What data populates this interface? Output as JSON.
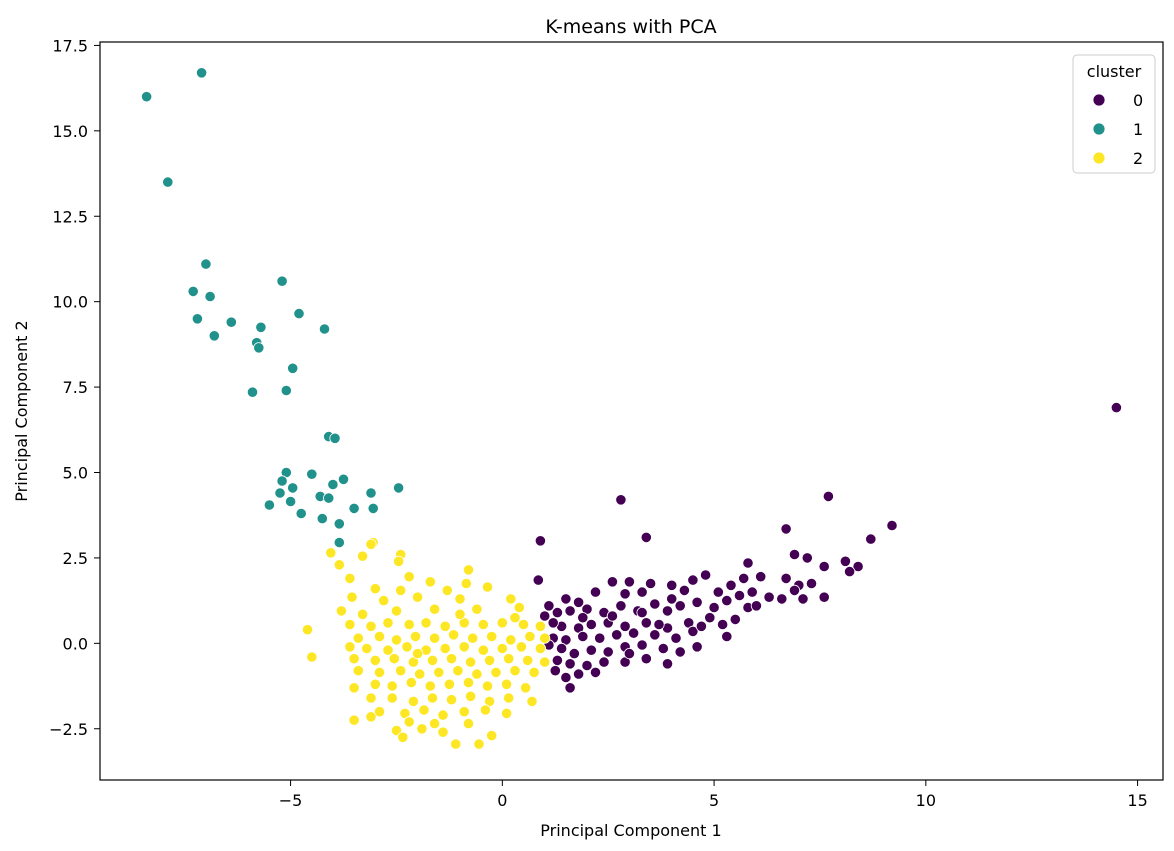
{
  "chart_data": {
    "type": "scatter",
    "title": "K-means with PCA",
    "xlabel": "Principal Component 1",
    "ylabel": "Principal Component 2",
    "xlim": [
      -9.5,
      15.6
    ],
    "ylim": [
      -4.0,
      17.6
    ],
    "xticks": [
      -5,
      0,
      5,
      10,
      15
    ],
    "xtick_labels": [
      "−5",
      "0",
      "5",
      "10",
      "15"
    ],
    "yticks": [
      -2.5,
      0.0,
      2.5,
      5.0,
      7.5,
      10.0,
      12.5,
      15.0,
      17.5
    ],
    "ytick_labels": [
      "−2.5",
      "0.0",
      "2.5",
      "5.0",
      "7.5",
      "10.0",
      "12.5",
      "15.0",
      "17.5"
    ],
    "grid": false,
    "legend": {
      "title": "cluster",
      "position": "top-right"
    },
    "series": [
      {
        "name": "0",
        "color": "#440154",
        "points": [
          [
            14.5,
            6.9
          ],
          [
            7.7,
            4.3
          ],
          [
            2.8,
            4.2
          ],
          [
            9.2,
            3.45
          ],
          [
            6.7,
            3.35
          ],
          [
            3.4,
            3.1
          ],
          [
            8.7,
            3.05
          ],
          [
            0.9,
            3.0
          ],
          [
            6.9,
            2.6
          ],
          [
            7.2,
            2.5
          ],
          [
            5.8,
            2.35
          ],
          [
            7.6,
            2.25
          ],
          [
            8.4,
            2.25
          ],
          [
            8.1,
            2.4
          ],
          [
            8.2,
            2.1
          ],
          [
            4.8,
            2.0
          ],
          [
            4.5,
            1.85
          ],
          [
            0.85,
            1.85
          ],
          [
            2.6,
            1.8
          ],
          [
            3.0,
            1.8
          ],
          [
            3.5,
            1.75
          ],
          [
            4.0,
            1.7
          ],
          [
            6.1,
            1.95
          ],
          [
            5.7,
            1.9
          ],
          [
            7.0,
            1.7
          ],
          [
            7.3,
            1.75
          ],
          [
            6.7,
            1.9
          ],
          [
            5.4,
            1.7
          ],
          [
            5.1,
            1.5
          ],
          [
            4.3,
            1.55
          ],
          [
            3.3,
            1.5
          ],
          [
            2.9,
            1.45
          ],
          [
            2.2,
            1.5
          ],
          [
            1.8,
            1.2
          ],
          [
            1.5,
            1.3
          ],
          [
            1.1,
            1.1
          ],
          [
            1.0,
            0.8
          ],
          [
            1.3,
            0.9
          ],
          [
            1.6,
            0.95
          ],
          [
            2.0,
            1.0
          ],
          [
            2.4,
            0.9
          ],
          [
            2.8,
            1.1
          ],
          [
            3.2,
            0.95
          ],
          [
            3.6,
            1.15
          ],
          [
            3.9,
            0.95
          ],
          [
            4.2,
            1.1
          ],
          [
            4.6,
            1.2
          ],
          [
            5.0,
            1.05
          ],
          [
            5.3,
            1.25
          ],
          [
            5.8,
            1.05
          ],
          [
            6.3,
            1.35
          ],
          [
            6.6,
            1.3
          ],
          [
            7.1,
            1.3
          ],
          [
            7.6,
            1.35
          ],
          [
            5.9,
            1.5
          ],
          [
            4.9,
            0.75
          ],
          [
            4.4,
            0.6
          ],
          [
            3.9,
            0.45
          ],
          [
            3.4,
            0.6
          ],
          [
            2.9,
            0.5
          ],
          [
            2.5,
            0.6
          ],
          [
            2.1,
            0.55
          ],
          [
            1.8,
            0.45
          ],
          [
            1.4,
            0.5
          ],
          [
            1.2,
            0.15
          ],
          [
            1.5,
            0.1
          ],
          [
            1.9,
            0.2
          ],
          [
            2.3,
            0.15
          ],
          [
            2.7,
            0.25
          ],
          [
            3.1,
            0.3
          ],
          [
            3.6,
            0.25
          ],
          [
            4.1,
            0.15
          ],
          [
            4.5,
            0.35
          ],
          [
            5.2,
            0.55
          ],
          [
            5.5,
            0.7
          ],
          [
            5.3,
            0.2
          ],
          [
            4.6,
            -0.1
          ],
          [
            4.2,
            -0.25
          ],
          [
            3.8,
            -0.15
          ],
          [
            3.3,
            -0.05
          ],
          [
            2.9,
            -0.1
          ],
          [
            2.5,
            -0.25
          ],
          [
            2.1,
            -0.2
          ],
          [
            1.7,
            -0.3
          ],
          [
            1.4,
            -0.15
          ],
          [
            1.1,
            -0.05
          ],
          [
            1.3,
            -0.5
          ],
          [
            1.6,
            -0.6
          ],
          [
            2.0,
            -0.65
          ],
          [
            2.4,
            -0.55
          ],
          [
            2.9,
            -0.55
          ],
          [
            3.4,
            -0.45
          ],
          [
            3.9,
            -0.6
          ],
          [
            1.5,
            -1.0
          ],
          [
            1.6,
            -1.3
          ],
          [
            1.25,
            -0.8
          ],
          [
            2.2,
            -0.85
          ],
          [
            1.8,
            -0.9
          ],
          [
            3.0,
            -0.3
          ],
          [
            3.7,
            0.55
          ],
          [
            4.7,
            0.5
          ],
          [
            6.0,
            1.1
          ],
          [
            6.9,
            1.55
          ],
          [
            5.6,
            1.4
          ],
          [
            1.2,
            0.6
          ],
          [
            1.9,
            0.75
          ],
          [
            2.6,
            0.8
          ],
          [
            3.3,
            0.9
          ],
          [
            4.0,
            1.3
          ]
        ]
      },
      {
        "name": "1",
        "color": "#21918c",
        "points": [
          [
            -7.1,
            16.7
          ],
          [
            -8.4,
            16.0
          ],
          [
            -7.9,
            13.5
          ],
          [
            -7.0,
            11.1
          ],
          [
            -7.3,
            10.3
          ],
          [
            -6.9,
            10.15
          ],
          [
            -5.2,
            10.6
          ],
          [
            -4.8,
            9.65
          ],
          [
            -7.2,
            9.5
          ],
          [
            -6.4,
            9.4
          ],
          [
            -5.7,
            9.25
          ],
          [
            -4.2,
            9.2
          ],
          [
            -6.8,
            9.0
          ],
          [
            -5.8,
            8.8
          ],
          [
            -5.75,
            8.65
          ],
          [
            -4.95,
            8.05
          ],
          [
            -5.9,
            7.35
          ],
          [
            -5.1,
            7.4
          ],
          [
            -4.1,
            6.05
          ],
          [
            -3.95,
            6.0
          ],
          [
            -5.1,
            5.0
          ],
          [
            -4.5,
            4.95
          ],
          [
            -3.75,
            4.8
          ],
          [
            -5.2,
            4.75
          ],
          [
            -4.0,
            4.65
          ],
          [
            -2.45,
            4.55
          ],
          [
            -4.95,
            4.55
          ],
          [
            -5.25,
            4.4
          ],
          [
            -3.1,
            4.4
          ],
          [
            -4.3,
            4.3
          ],
          [
            -4.1,
            4.25
          ],
          [
            -5.0,
            4.15
          ],
          [
            -5.5,
            4.05
          ],
          [
            -3.5,
            3.95
          ],
          [
            -3.05,
            3.95
          ],
          [
            -4.75,
            3.8
          ],
          [
            -4.25,
            3.65
          ],
          [
            -3.85,
            3.5
          ],
          [
            -3.85,
            2.95
          ]
        ]
      },
      {
        "name": "2",
        "color": "#fde725",
        "points": [
          [
            -3.05,
            2.95
          ],
          [
            -3.1,
            2.9
          ],
          [
            -2.4,
            2.6
          ],
          [
            -4.05,
            2.65
          ],
          [
            -3.3,
            2.55
          ],
          [
            -3.85,
            2.3
          ],
          [
            -2.45,
            2.4
          ],
          [
            -0.8,
            2.15
          ],
          [
            -3.6,
            1.9
          ],
          [
            -2.2,
            1.95
          ],
          [
            -1.7,
            1.8
          ],
          [
            -0.85,
            1.75
          ],
          [
            -3.0,
            1.6
          ],
          [
            -2.4,
            1.55
          ],
          [
            -1.3,
            1.55
          ],
          [
            -0.35,
            1.65
          ],
          [
            -3.55,
            1.35
          ],
          [
            -2.8,
            1.25
          ],
          [
            -2.0,
            1.35
          ],
          [
            -1.0,
            1.3
          ],
          [
            0.2,
            1.3
          ],
          [
            -3.8,
            0.95
          ],
          [
            -3.3,
            0.85
          ],
          [
            -2.5,
            0.95
          ],
          [
            -1.6,
            1.0
          ],
          [
            -0.6,
            1.0
          ],
          [
            0.4,
            1.05
          ],
          [
            -4.6,
            0.4
          ],
          [
            -3.6,
            0.55
          ],
          [
            -3.1,
            0.5
          ],
          [
            -2.7,
            0.6
          ],
          [
            -2.2,
            0.55
          ],
          [
            -1.8,
            0.6
          ],
          [
            -1.35,
            0.5
          ],
          [
            -0.9,
            0.6
          ],
          [
            -0.45,
            0.55
          ],
          [
            0.0,
            0.6
          ],
          [
            0.5,
            0.55
          ],
          [
            0.9,
            0.5
          ],
          [
            -3.4,
            0.15
          ],
          [
            -2.9,
            0.2
          ],
          [
            -2.5,
            0.1
          ],
          [
            -2.05,
            0.2
          ],
          [
            -1.6,
            0.15
          ],
          [
            -1.15,
            0.25
          ],
          [
            -0.7,
            0.15
          ],
          [
            -0.25,
            0.2
          ],
          [
            0.2,
            0.1
          ],
          [
            0.65,
            0.2
          ],
          [
            1.0,
            0.15
          ],
          [
            -3.6,
            -0.1
          ],
          [
            -3.2,
            -0.15
          ],
          [
            -2.7,
            -0.2
          ],
          [
            -2.25,
            -0.1
          ],
          [
            -1.8,
            -0.2
          ],
          [
            -1.35,
            -0.15
          ],
          [
            -0.9,
            -0.1
          ],
          [
            -0.45,
            -0.2
          ],
          [
            0.0,
            -0.15
          ],
          [
            0.45,
            -0.1
          ],
          [
            0.9,
            -0.15
          ],
          [
            -4.5,
            -0.4
          ],
          [
            -3.5,
            -0.45
          ],
          [
            -3.0,
            -0.5
          ],
          [
            -2.55,
            -0.45
          ],
          [
            -2.1,
            -0.55
          ],
          [
            -1.65,
            -0.5
          ],
          [
            -1.2,
            -0.45
          ],
          [
            -0.75,
            -0.55
          ],
          [
            -0.3,
            -0.5
          ],
          [
            0.15,
            -0.45
          ],
          [
            0.6,
            -0.5
          ],
          [
            1.0,
            -0.55
          ],
          [
            -3.4,
            -0.8
          ],
          [
            -2.9,
            -0.85
          ],
          [
            -2.4,
            -0.8
          ],
          [
            -1.95,
            -0.9
          ],
          [
            -1.5,
            -0.85
          ],
          [
            -1.05,
            -0.8
          ],
          [
            -0.6,
            -0.9
          ],
          [
            -0.15,
            -0.85
          ],
          [
            0.3,
            -0.8
          ],
          [
            0.75,
            -0.85
          ],
          [
            -3.5,
            -1.3
          ],
          [
            -3.0,
            -1.2
          ],
          [
            -2.6,
            -1.25
          ],
          [
            -2.15,
            -1.15
          ],
          [
            -1.7,
            -1.25
          ],
          [
            -1.25,
            -1.2
          ],
          [
            -0.8,
            -1.15
          ],
          [
            -0.35,
            -1.25
          ],
          [
            0.1,
            -1.2
          ],
          [
            0.55,
            -1.3
          ],
          [
            -3.1,
            -1.6
          ],
          [
            -2.6,
            -1.6
          ],
          [
            -2.1,
            -1.7
          ],
          [
            -1.65,
            -1.6
          ],
          [
            -1.2,
            -1.65
          ],
          [
            -0.75,
            -1.55
          ],
          [
            -0.3,
            -1.7
          ],
          [
            0.15,
            -1.6
          ],
          [
            0.7,
            -1.7
          ],
          [
            -2.9,
            -2.0
          ],
          [
            -2.3,
            -2.05
          ],
          [
            -1.85,
            -1.95
          ],
          [
            -1.4,
            -2.1
          ],
          [
            -0.9,
            -2.0
          ],
          [
            -0.4,
            -1.95
          ],
          [
            0.1,
            -2.05
          ],
          [
            -3.5,
            -2.25
          ],
          [
            -3.1,
            -2.15
          ],
          [
            -2.2,
            -2.3
          ],
          [
            -1.6,
            -2.35
          ],
          [
            -0.8,
            -2.35
          ],
          [
            -2.5,
            -2.55
          ],
          [
            -1.9,
            -2.5
          ],
          [
            -1.4,
            -2.6
          ],
          [
            -2.35,
            -2.75
          ],
          [
            -1.1,
            -2.95
          ],
          [
            -0.55,
            -2.95
          ],
          [
            -0.25,
            -2.7
          ],
          [
            -2.0,
            -0.3
          ],
          [
            -1.0,
            0.85
          ],
          [
            0.3,
            0.75
          ]
        ]
      }
    ]
  }
}
